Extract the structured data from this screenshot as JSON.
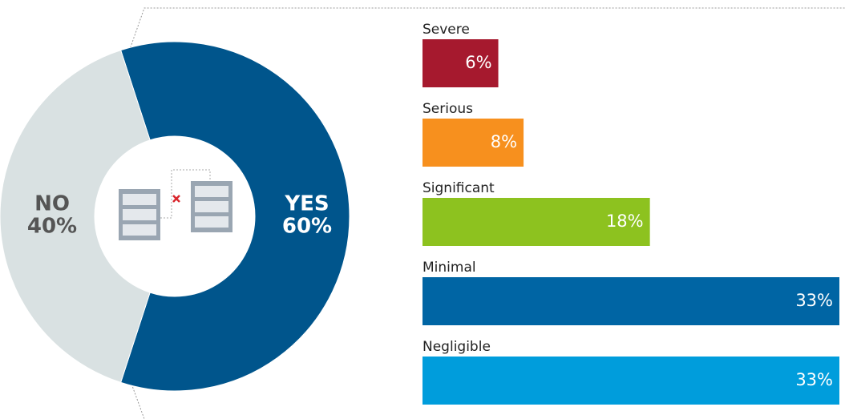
{
  "chart_data": [
    {
      "type": "donut",
      "categories": [
        "YES",
        "NO"
      ],
      "values": [
        60,
        40
      ],
      "value_labels": [
        "60%",
        "40%"
      ],
      "colors": [
        "#00558c",
        "#d9e1e2"
      ]
    },
    {
      "type": "hbar",
      "categories": [
        "Severe",
        "Serious",
        "Significant",
        "Minimal",
        "Negligible"
      ],
      "values": [
        6,
        8,
        18,
        33,
        33
      ],
      "value_labels": [
        "6%",
        "8%",
        "18%",
        "33%",
        "33%"
      ],
      "colors": [
        "#a6192e",
        "#f7901e",
        "#8dc21f",
        "#0065a4",
        "#009ddc"
      ]
    }
  ]
}
